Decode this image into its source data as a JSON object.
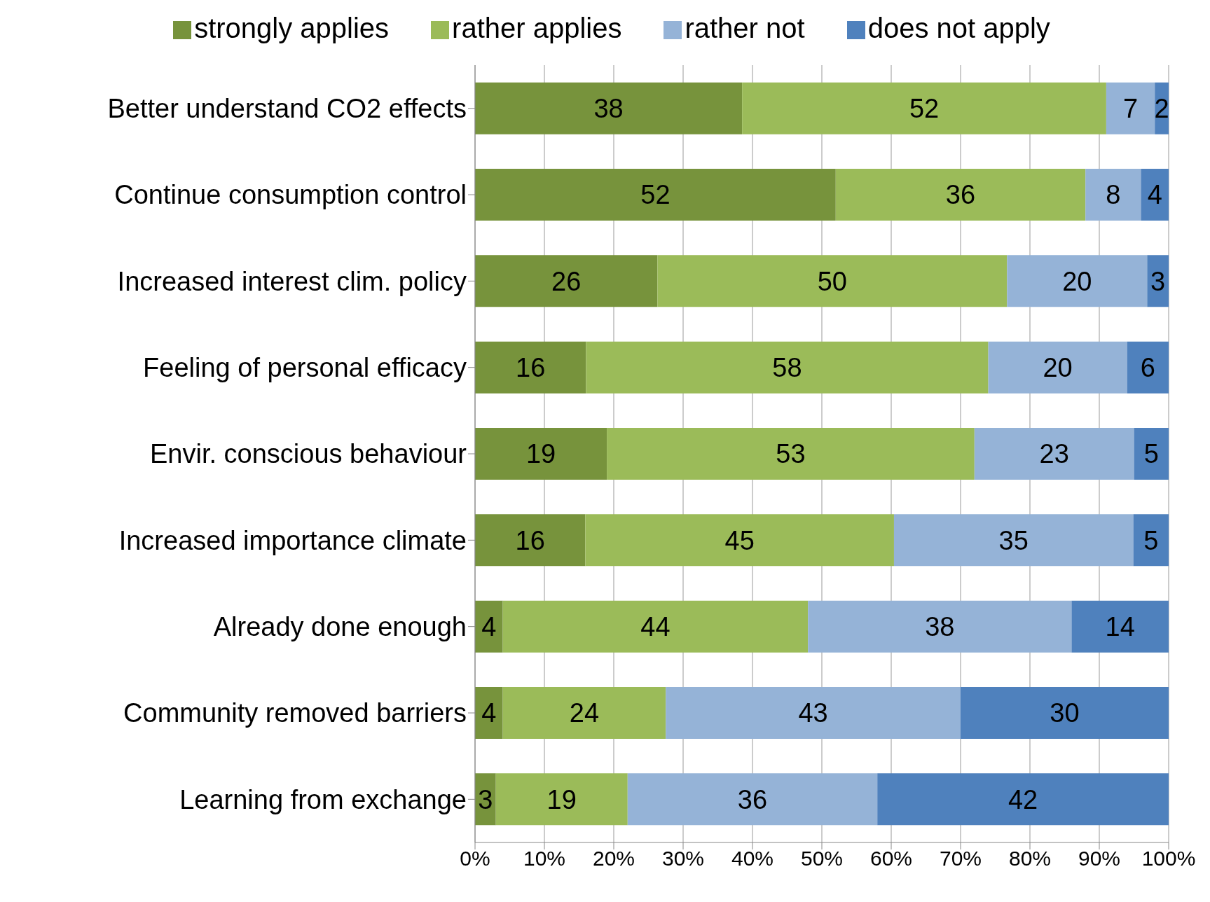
{
  "chart_data": {
    "type": "bar",
    "orientation": "horizontal",
    "stacked": true,
    "categories": [
      "Better understand CO2 effects",
      "Continue consumption control",
      "Increased interest clim. policy",
      "Feeling of personal efficacy",
      "Envir. conscious behaviour",
      "Increased importance climate",
      "Already done enough",
      "Community removed barriers",
      "Learning from exchange"
    ],
    "series": [
      {
        "name": "strongly applies",
        "color": "#77933c",
        "values": [
          38.5,
          52,
          26.3,
          16,
          19,
          15.9,
          4,
          4,
          3
        ],
        "value_labels": [
          "38",
          "52",
          "26",
          "16",
          "19",
          "16",
          "4",
          "4",
          "3"
        ]
      },
      {
        "name": "rather applies",
        "color": "#9bbb59",
        "values": [
          52.5,
          36,
          50.4,
          58,
          53,
          44.5,
          44,
          23.5,
          19
        ],
        "value_labels": [
          "52",
          "36",
          "50",
          "58",
          "53",
          "45",
          "44",
          "24",
          "19"
        ]
      },
      {
        "name": "rather not",
        "color": "#95b3d7",
        "values": [
          7,
          8,
          20.2,
          20,
          23,
          34.5,
          38,
          42.5,
          36
        ],
        "value_labels": [
          "7",
          "8",
          "20",
          "20",
          "23",
          "35",
          "38",
          "43",
          "36"
        ]
      },
      {
        "name": "does not apply",
        "color": "#4f81bd",
        "values": [
          2,
          4,
          3.1,
          6,
          5,
          5.1,
          14,
          30,
          42
        ],
        "value_labels": [
          "2",
          "4",
          "3",
          "6",
          "5",
          "5",
          "14",
          "30",
          "42"
        ]
      }
    ],
    "xlim": [
      0,
      100
    ],
    "xticks": [
      {
        "value": 0,
        "label": "0%"
      },
      {
        "value": 10,
        "label": "10%"
      },
      {
        "value": 20,
        "label": "20%"
      },
      {
        "value": 30,
        "label": "30%"
      },
      {
        "value": 40,
        "label": "40%"
      },
      {
        "value": 50,
        "label": "50%"
      },
      {
        "value": 60,
        "label": "60%"
      },
      {
        "value": 70,
        "label": "70%"
      },
      {
        "value": 80,
        "label": "80%"
      },
      {
        "value": 90,
        "label": "90%"
      },
      {
        "value": 100,
        "label": "100%"
      }
    ],
    "grid": "x",
    "legend": "top"
  }
}
